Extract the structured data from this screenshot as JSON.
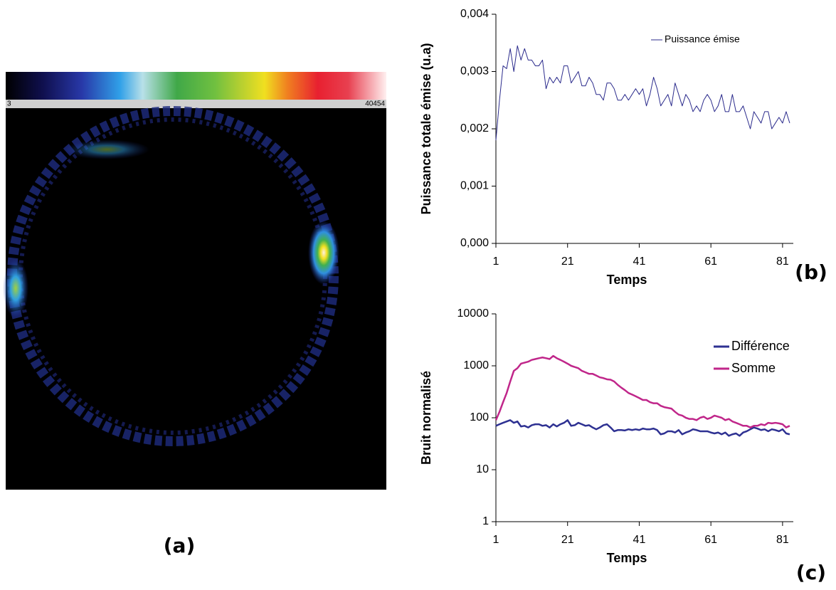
{
  "image": {
    "label": "(a)",
    "colorbar_min": 3,
    "colorbar_max": 40454
  },
  "chart_data": [
    {
      "type": "line",
      "panel": "(b)",
      "x_label": "Temps",
      "y_label": "Puissance totale émise (u.a)",
      "legend": "upper right",
      "log_y": false,
      "x": [
        1,
        2,
        3,
        4,
        5,
        6,
        7,
        8,
        9,
        10,
        11,
        12,
        13,
        14,
        15,
        16,
        17,
        18,
        19,
        20,
        21,
        22,
        23,
        24,
        25,
        26,
        27,
        28,
        29,
        30,
        31,
        32,
        33,
        34,
        35,
        36,
        37,
        38,
        39,
        40,
        41,
        42,
        43,
        44,
        45,
        46,
        47,
        48,
        49,
        50,
        51,
        52,
        53,
        54,
        55,
        56,
        57,
        58,
        59,
        60,
        61,
        62,
        63,
        64,
        65,
        66,
        67,
        68,
        69,
        70,
        71,
        72,
        73,
        74,
        75,
        76,
        77,
        78,
        79,
        80,
        81,
        82,
        83
      ],
      "xlim": [
        1,
        84
      ],
      "xticks": [
        1,
        21,
        41,
        61,
        81
      ],
      "ylim": [
        0,
        0.004
      ],
      "yticks": [
        {
          "value": 0,
          "label": "0,000"
        },
        {
          "value": 0.001,
          "label": "0,001"
        },
        {
          "value": 0.002,
          "label": "0,002"
        },
        {
          "value": 0.003,
          "label": "0,003"
        },
        {
          "value": 0.004,
          "label": "0,004"
        }
      ],
      "series": [
        {
          "name": "Puissance émise",
          "color": "#2b2b8c",
          "values": [
            0.0018,
            0.0025,
            0.0031,
            0.00305,
            0.0034,
            0.003,
            0.00345,
            0.0032,
            0.0034,
            0.0032,
            0.0032,
            0.0031,
            0.0031,
            0.0032,
            0.0027,
            0.0029,
            0.0028,
            0.0029,
            0.0028,
            0.0031,
            0.0031,
            0.0028,
            0.0029,
            0.003,
            0.00275,
            0.00275,
            0.0029,
            0.0028,
            0.0026,
            0.0026,
            0.0025,
            0.0028,
            0.0028,
            0.0027,
            0.0025,
            0.0025,
            0.0026,
            0.0025,
            0.0026,
            0.0027,
            0.0026,
            0.0027,
            0.0024,
            0.0026,
            0.0029,
            0.0027,
            0.0024,
            0.0025,
            0.0026,
            0.0024,
            0.0028,
            0.0026,
            0.0024,
            0.0026,
            0.0025,
            0.0023,
            0.0024,
            0.0023,
            0.0025,
            0.0026,
            0.0025,
            0.0023,
            0.0024,
            0.0026,
            0.0023,
            0.0023,
            0.0026,
            0.0023,
            0.0023,
            0.0024,
            0.0022,
            0.002,
            0.0023,
            0.0022,
            0.0021,
            0.0023,
            0.0023,
            0.002,
            0.0021,
            0.0022,
            0.0021,
            0.0023,
            0.0021
          ]
        }
      ]
    },
    {
      "type": "line",
      "panel": "(c)",
      "x_label": "Temps",
      "y_label": "Bruit normalisé",
      "legend": "upper right",
      "log_y": true,
      "x": [
        1,
        2,
        3,
        4,
        5,
        6,
        7,
        8,
        9,
        10,
        11,
        12,
        13,
        14,
        15,
        16,
        17,
        18,
        19,
        20,
        21,
        22,
        23,
        24,
        25,
        26,
        27,
        28,
        29,
        30,
        31,
        32,
        33,
        34,
        35,
        36,
        37,
        38,
        39,
        40,
        41,
        42,
        43,
        44,
        45,
        46,
        47,
        48,
        49,
        50,
        51,
        52,
        53,
        54,
        55,
        56,
        57,
        58,
        59,
        60,
        61,
        62,
        63,
        64,
        65,
        66,
        67,
        68,
        69,
        70,
        71,
        72,
        73,
        74,
        75,
        76,
        77,
        78,
        79,
        80,
        81,
        82,
        83
      ],
      "xlim": [
        1,
        84
      ],
      "xticks": [
        1,
        21,
        41,
        61,
        81
      ],
      "ylim": [
        1,
        10000
      ],
      "yticks": [
        1,
        10,
        100,
        1000,
        10000
      ],
      "series": [
        {
          "name": "Différence",
          "color": "#2e3192",
          "values": [
            70,
            75,
            80,
            85,
            90,
            80,
            85,
            68,
            70,
            65,
            72,
            75,
            75,
            70,
            72,
            65,
            75,
            68,
            75,
            80,
            90,
            70,
            72,
            80,
            75,
            70,
            72,
            65,
            60,
            65,
            72,
            75,
            65,
            55,
            58,
            58,
            57,
            60,
            58,
            60,
            58,
            62,
            60,
            60,
            62,
            58,
            48,
            50,
            55,
            55,
            52,
            58,
            48,
            52,
            55,
            60,
            58,
            55,
            55,
            55,
            52,
            50,
            52,
            48,
            52,
            45,
            48,
            50,
            45,
            52,
            55,
            60,
            65,
            62,
            58,
            60,
            55,
            60,
            58,
            55,
            60,
            50,
            48
          ]
        },
        {
          "name": "Somme",
          "color": "#c0268a",
          "values": [
            90,
            130,
            200,
            300,
            500,
            800,
            900,
            1100,
            1150,
            1200,
            1300,
            1350,
            1400,
            1450,
            1400,
            1350,
            1550,
            1400,
            1300,
            1200,
            1100,
            1000,
            950,
            900,
            800,
            750,
            700,
            700,
            650,
            600,
            580,
            550,
            540,
            500,
            430,
            380,
            340,
            300,
            280,
            260,
            240,
            220,
            220,
            200,
            190,
            190,
            170,
            160,
            155,
            150,
            130,
            115,
            110,
            100,
            95,
            95,
            90,
            100,
            105,
            95,
            100,
            110,
            105,
            100,
            90,
            95,
            85,
            80,
            75,
            70,
            70,
            65,
            70,
            70,
            75,
            72,
            80,
            78,
            80,
            78,
            75,
            65,
            70
          ]
        }
      ]
    }
  ]
}
